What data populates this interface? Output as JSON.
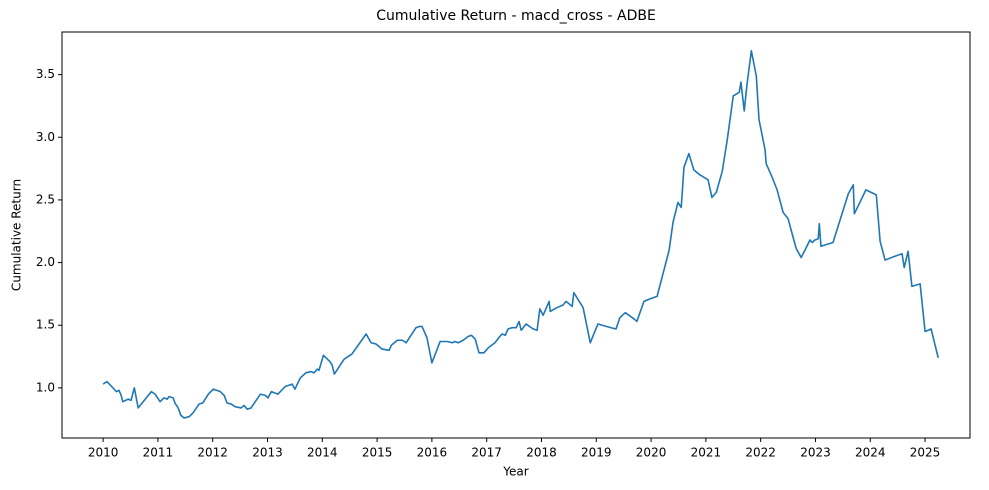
{
  "chart_data": {
    "type": "line",
    "title": "Cumulative Return - macd_cross - ADBE",
    "xlabel": "Year",
    "ylabel": "Cumulative Return",
    "color": "#1f77b4",
    "x": [
      2010.0,
      2010.07,
      2010.18,
      2010.24,
      2010.29,
      2010.33,
      2010.36,
      2010.46,
      2010.51,
      2010.57,
      2010.64,
      2010.88,
      2010.95,
      2011.04,
      2011.11,
      2011.17,
      2011.2,
      2011.28,
      2011.31,
      2011.37,
      2011.42,
      2011.48,
      2011.57,
      2011.64,
      2011.75,
      2011.82,
      2011.92,
      2012.01,
      2012.14,
      2012.21,
      2012.26,
      2012.34,
      2012.41,
      2012.52,
      2012.57,
      2012.63,
      2012.7,
      2012.87,
      2012.96,
      2013.01,
      2013.07,
      2013.19,
      2013.32,
      2013.45,
      2013.5,
      2013.6,
      2013.7,
      2013.8,
      2013.85,
      2013.91,
      2013.94,
      2014.02,
      2014.14,
      2014.18,
      2014.22,
      2014.4,
      2014.54,
      2014.8,
      2014.89,
      2014.98,
      2015.09,
      2015.22,
      2015.26,
      2015.37,
      2015.46,
      2015.53,
      2015.71,
      2015.77,
      2015.82,
      2015.91,
      2016.0,
      2016.15,
      2016.28,
      2016.37,
      2016.42,
      2016.48,
      2016.57,
      2016.66,
      2016.72,
      2016.79,
      2016.86,
      2016.95,
      2017.03,
      2017.15,
      2017.24,
      2017.28,
      2017.34,
      2017.39,
      2017.46,
      2017.54,
      2017.59,
      2017.63,
      2017.72,
      2017.85,
      2017.92,
      2017.97,
      2018.03,
      2018.14,
      2018.16,
      2018.28,
      2018.39,
      2018.45,
      2018.56,
      2018.59,
      2018.76,
      2018.89,
      2019.03,
      2019.27,
      2019.36,
      2019.43,
      2019.53,
      2019.69,
      2019.74,
      2019.87,
      2019.98,
      2020.11,
      2020.33,
      2020.4,
      2020.49,
      2020.55,
      2020.6,
      2020.69,
      2020.78,
      2020.89,
      2021.04,
      2021.11,
      2021.19,
      2021.3,
      2021.39,
      2021.5,
      2021.61,
      2021.64,
      2021.7,
      2021.75,
      2021.83,
      2021.92,
      2021.97,
      2022.08,
      2022.1,
      2022.21,
      2022.3,
      2022.41,
      2022.5,
      2022.58,
      2022.65,
      2022.74,
      2022.9,
      2022.94,
      2022.99,
      2023.05,
      2023.07,
      2023.1,
      2023.32,
      2023.6,
      2023.69,
      2023.71,
      2023.92,
      2024.11,
      2024.18,
      2024.27,
      2024.45,
      2024.58,
      2024.62,
      2024.69,
      2024.76,
      2024.91,
      2025.0,
      2025.11,
      2025.24
    ],
    "values": [
      1.03,
      1.05,
      1.0,
      0.97,
      0.98,
      0.94,
      0.89,
      0.91,
      0.9,
      1.0,
      0.84,
      0.97,
      0.95,
      0.89,
      0.92,
      0.91,
      0.93,
      0.92,
      0.88,
      0.84,
      0.78,
      0.76,
      0.77,
      0.8,
      0.87,
      0.88,
      0.95,
      0.99,
      0.97,
      0.94,
      0.88,
      0.87,
      0.85,
      0.84,
      0.86,
      0.83,
      0.84,
      0.95,
      0.94,
      0.92,
      0.97,
      0.95,
      1.01,
      1.03,
      0.99,
      1.08,
      1.12,
      1.13,
      1.12,
      1.15,
      1.14,
      1.26,
      1.21,
      1.18,
      1.11,
      1.23,
      1.27,
      1.43,
      1.36,
      1.35,
      1.31,
      1.3,
      1.34,
      1.38,
      1.38,
      1.36,
      1.48,
      1.49,
      1.49,
      1.4,
      1.2,
      1.37,
      1.37,
      1.36,
      1.37,
      1.36,
      1.38,
      1.41,
      1.42,
      1.39,
      1.28,
      1.28,
      1.32,
      1.36,
      1.41,
      1.43,
      1.42,
      1.47,
      1.48,
      1.48,
      1.53,
      1.46,
      1.51,
      1.47,
      1.46,
      1.63,
      1.58,
      1.69,
      1.61,
      1.64,
      1.66,
      1.69,
      1.65,
      1.76,
      1.64,
      1.36,
      1.51,
      1.48,
      1.47,
      1.56,
      1.6,
      1.55,
      1.53,
      1.69,
      1.71,
      1.73,
      2.1,
      2.32,
      2.48,
      2.44,
      2.76,
      2.87,
      2.74,
      2.7,
      2.66,
      2.52,
      2.56,
      2.73,
      2.98,
      3.33,
      3.36,
      3.44,
      3.21,
      3.42,
      3.69,
      3.49,
      3.14,
      2.9,
      2.79,
      2.68,
      2.58,
      2.4,
      2.35,
      2.22,
      2.11,
      2.04,
      2.18,
      2.16,
      2.18,
      2.19,
      2.31,
      2.13,
      2.16,
      2.55,
      2.62,
      2.39,
      2.58,
      2.54,
      2.17,
      2.02,
      2.05,
      2.07,
      1.96,
      2.09,
      1.81,
      1.83,
      1.45,
      1.47,
      1.24
    ],
    "xlim": [
      2009.25,
      2025.82
    ],
    "ylim": [
      0.6,
      3.84
    ],
    "xticks": [
      2010,
      2011,
      2012,
      2013,
      2014,
      2015,
      2016,
      2017,
      2018,
      2019,
      2020,
      2021,
      2022,
      2023,
      2024,
      2025
    ],
    "yticks": [
      {
        "value": 1.0,
        "label": "1.0"
      },
      {
        "value": 1.5,
        "label": "1.5"
      },
      {
        "value": 2.0,
        "label": "2.0"
      },
      {
        "value": 2.5,
        "label": "2.5"
      },
      {
        "value": 3.0,
        "label": "3.0"
      },
      {
        "value": 3.5,
        "label": "3.5"
      }
    ],
    "grid": false
  }
}
